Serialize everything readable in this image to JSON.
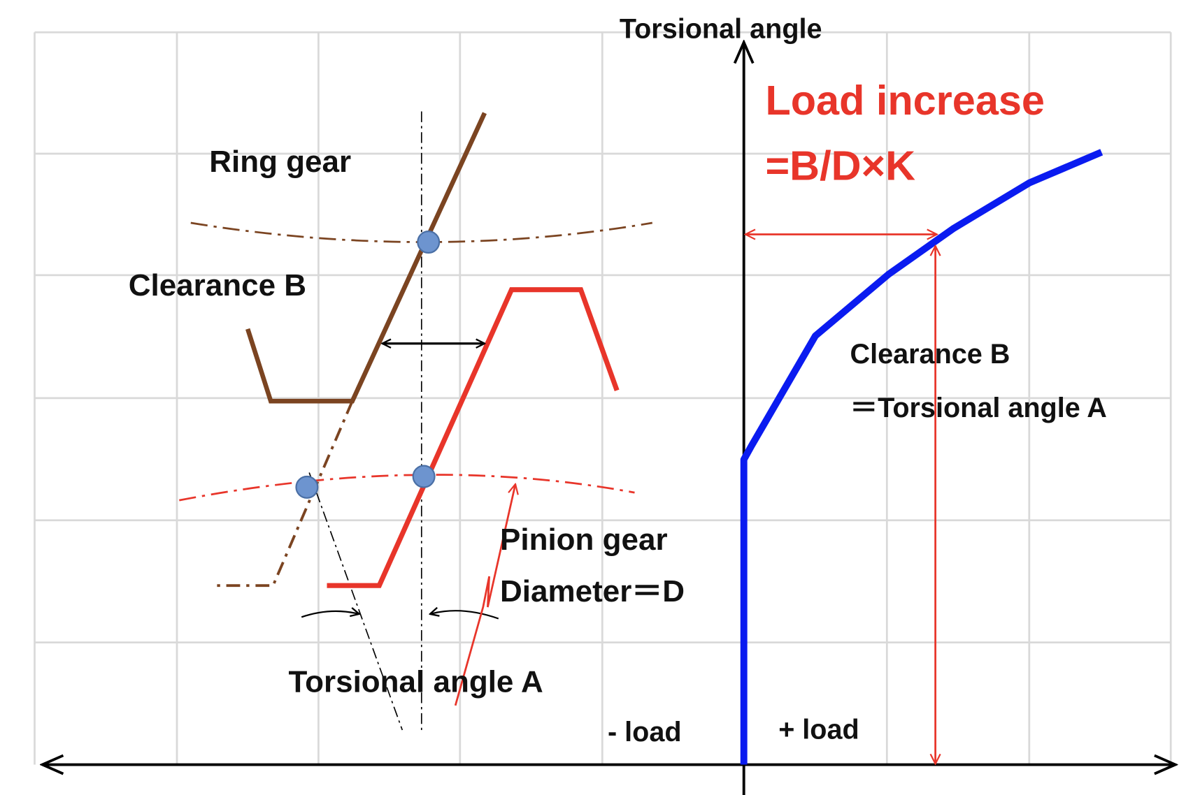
{
  "axes": {
    "y_label": "Torsional angle",
    "neg_label": "- load",
    "pos_label": "+ load"
  },
  "formula": {
    "line1": "Load increase",
    "line2": "=B/D×K"
  },
  "gear_labels": {
    "ring": "Ring gear",
    "clearance": "Clearance B",
    "pinion": "Pinion gear",
    "diameter": "Diameter＝D",
    "angle": "Torsional angle A"
  },
  "curve_labels": {
    "clearance": "Clearance B",
    "equals_angle": "＝Torsional angle A"
  }
}
